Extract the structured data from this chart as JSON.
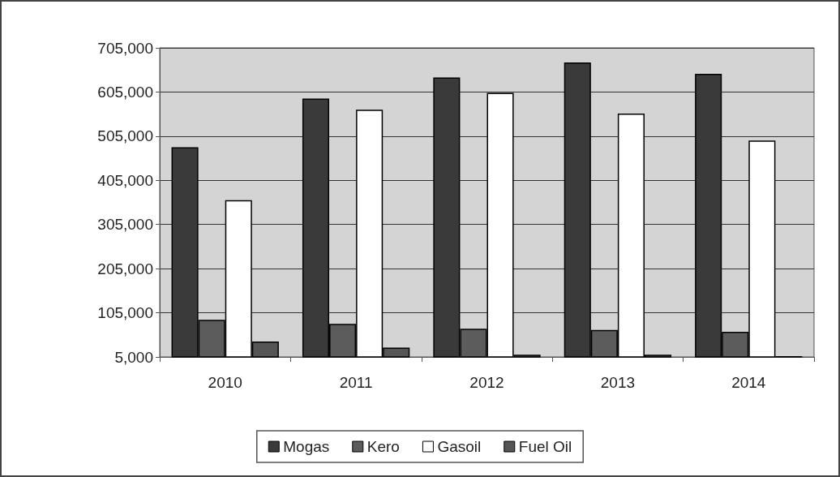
{
  "chart_data": {
    "type": "bar",
    "categories": [
      "2010",
      "2011",
      "2012",
      "2013",
      "2014"
    ],
    "series": [
      {
        "name": "Mogas",
        "color": "#3a3a3a",
        "values": [
          480000,
          590000,
          638000,
          672000,
          646000
        ]
      },
      {
        "name": "Kero",
        "color": "#5c5c5c",
        "values": [
          89000,
          80000,
          69000,
          66000,
          62000
        ]
      },
      {
        "name": "Gasoil",
        "color": "#ffffff",
        "values": [
          360000,
          565000,
          603000,
          556000,
          495000
        ]
      },
      {
        "name": "Fuel Oil",
        "color": "#555555",
        "values": [
          40000,
          26000,
          10000,
          10000,
          7000
        ]
      }
    ],
    "ylim": [
      5000,
      705000
    ],
    "yticks": [
      {
        "value": 5000,
        "label": "5,000"
      },
      {
        "value": 105000,
        "label": "105,000"
      },
      {
        "value": 205000,
        "label": "205,000"
      },
      {
        "value": 305000,
        "label": "305,000"
      },
      {
        "value": 405000,
        "label": "405,000"
      },
      {
        "value": 505000,
        "label": "505,000"
      },
      {
        "value": 605000,
        "label": "605,000"
      },
      {
        "value": 705000,
        "label": "705,000"
      }
    ],
    "grid": "y",
    "legend": "bottom"
  }
}
